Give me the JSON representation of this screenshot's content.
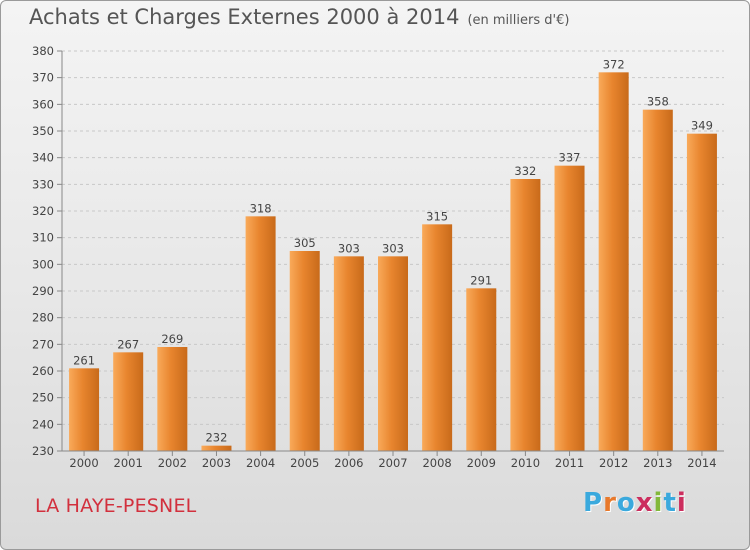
{
  "header": {
    "title": "Achats et Charges Externes 2000 à 2014",
    "unit": "(en milliers d'€)"
  },
  "footer": {
    "commune": "LA HAYE-PESNEL",
    "logo_text": "Proxiti",
    "logo_letters": [
      "P",
      "r",
      "o",
      "x",
      "i",
      "t",
      "i"
    ],
    "logo_colors": [
      "#3aa9dd",
      "#e8792b",
      "#3aa9dd",
      "#cc2e5e",
      "#82b83a",
      "#3aa9dd",
      "#cc2e5e"
    ]
  },
  "chart_data": {
    "type": "bar",
    "title": "Achats et Charges Externes 2000 à 2014",
    "subtitle": "(en milliers d'€)",
    "xlabel": "",
    "ylabel": "",
    "categories": [
      "2000",
      "2001",
      "2002",
      "2003",
      "2004",
      "2005",
      "2006",
      "2007",
      "2008",
      "2009",
      "2010",
      "2011",
      "2012",
      "2013",
      "2014"
    ],
    "values": [
      261,
      267,
      269,
      232,
      318,
      305,
      303,
      303,
      315,
      291,
      332,
      337,
      372,
      358,
      349
    ],
    "ylim": [
      230,
      380
    ],
    "yticks": [
      230,
      240,
      250,
      260,
      270,
      280,
      290,
      300,
      310,
      320,
      330,
      340,
      350,
      360,
      370,
      380
    ],
    "grid": true,
    "bar_color": "#e8852e",
    "bar_light_color": "#f9aa5a",
    "bar_dark_color": "#c86a1a",
    "text_color": "#444444",
    "title_color": "#555555",
    "commune_color": "#d2303d"
  }
}
